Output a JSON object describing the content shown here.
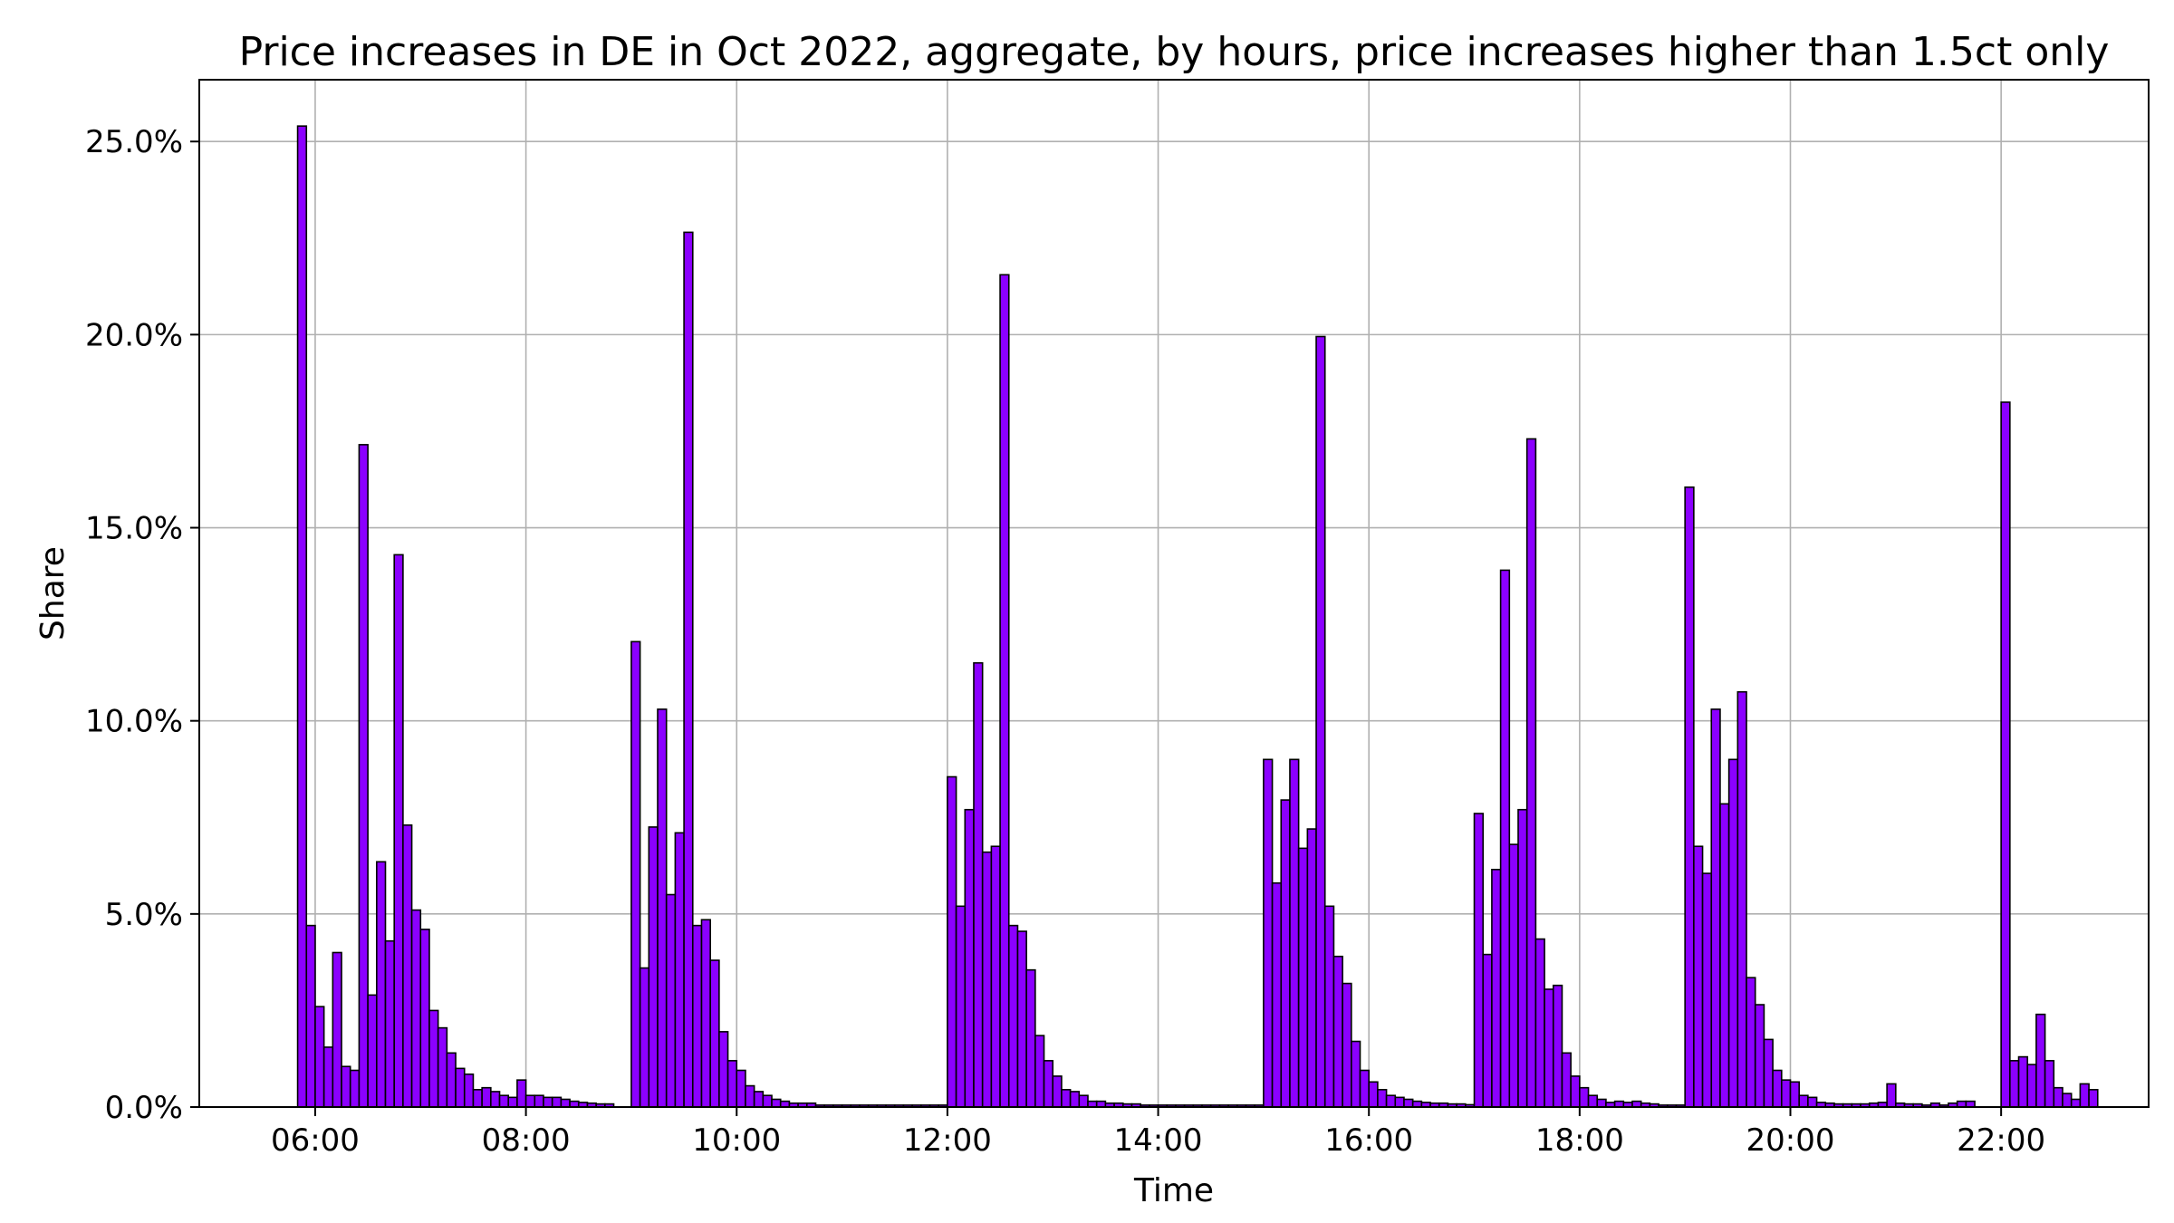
{
  "chart_data": {
    "type": "bar",
    "title": "Price increases in DE in Oct 2022, aggregate, by hours, price increases higher than 1.5ct only",
    "xlabel": "Time",
    "ylabel": "Share",
    "x_tick_labels": [
      "06:00",
      "08:00",
      "10:00",
      "12:00",
      "14:00",
      "16:00",
      "18:00",
      "20:00",
      "22:00"
    ],
    "y_tick_labels": [
      "0.0%",
      "5.0%",
      "10.0%",
      "15.0%",
      "20.0%",
      "25.0%"
    ],
    "y_ticks": [
      0,
      5,
      10,
      15,
      20,
      25
    ],
    "x_ticks_hours": [
      6,
      8,
      10,
      12,
      14,
      16,
      18,
      20,
      22
    ],
    "xlim_hours": [
      4.9,
      23.4
    ],
    "ylim": [
      0,
      26.6
    ],
    "bin_width_minutes": 5,
    "grid": true,
    "bar_color": "#8b00ff",
    "edge_color": "#000000",
    "series": [
      {
        "start_time": "05:50",
        "values": [
          25.4,
          4.7,
          2.6,
          1.55,
          4.0,
          1.05,
          0.95,
          17.15,
          2.9,
          6.35,
          4.3,
          14.3,
          7.3,
          5.1,
          4.6,
          2.5,
          2.05,
          1.4,
          1.0,
          0.85,
          0.45,
          0.5,
          0.4,
          0.3,
          0.25,
          0.7,
          0.3,
          0.3,
          0.25,
          0.25,
          0.2,
          0.15,
          0.12,
          0.1,
          0.08,
          0.08
        ]
      },
      {
        "start_time": "09:00",
        "values": [
          12.05,
          3.6,
          7.25,
          10.3,
          5.5,
          7.1,
          22.65,
          4.7,
          4.85,
          3.8,
          1.95,
          1.2,
          0.95,
          0.55,
          0.4,
          0.3,
          0.2,
          0.15,
          0.1,
          0.1,
          0.1,
          0.05,
          0.05,
          0.05,
          0.05,
          0.05,
          0.05,
          0.05,
          0.05,
          0.05,
          0.05,
          0.05,
          0.05,
          0.05,
          0.05,
          0.05
        ]
      },
      {
        "start_time": "12:00",
        "values": [
          8.55,
          5.2,
          7.7,
          11.5,
          6.6,
          6.75,
          21.55,
          4.7,
          4.55,
          3.55,
          1.85,
          1.2,
          0.8,
          0.45,
          0.4,
          0.3,
          0.15,
          0.15,
          0.1,
          0.1,
          0.08,
          0.08,
          0.05,
          0.05,
          0.05,
          0.05,
          0.05,
          0.05,
          0.05,
          0.05,
          0.05,
          0.05,
          0.05,
          0.05,
          0.05,
          0.05
        ]
      },
      {
        "start_time": "15:00",
        "values": [
          9.0,
          5.8,
          7.95,
          9.0,
          6.7,
          7.2,
          19.95,
          5.2,
          3.9,
          3.2,
          1.7,
          0.95,
          0.65,
          0.45,
          0.3,
          0.25,
          0.2,
          0.15,
          0.12,
          0.1,
          0.1,
          0.08,
          0.08,
          0.06
        ]
      },
      {
        "start_time": "17:00",
        "values": [
          7.6,
          3.95,
          6.15,
          13.9,
          6.8,
          7.7,
          17.3,
          4.35,
          3.05,
          3.15,
          1.4,
          0.8,
          0.5,
          0.3,
          0.2,
          0.12,
          0.15,
          0.12,
          0.15,
          0.1,
          0.08,
          0.05,
          0.05,
          0.05
        ]
      },
      {
        "start_time": "19:00",
        "values": [
          16.05,
          6.75,
          6.05,
          10.3,
          7.85,
          9.0,
          10.75,
          3.35,
          2.65,
          1.75,
          0.95,
          0.7,
          0.65,
          0.3,
          0.25,
          0.12,
          0.1,
          0.08,
          0.08,
          0.08,
          0.08,
          0.1,
          0.12,
          0.6,
          0.1,
          0.08,
          0.08,
          0.05,
          0.1,
          0.05,
          0.1,
          0.15,
          0.15
        ]
      },
      {
        "start_time": "22:00",
        "values": [
          18.25,
          1.2,
          1.3,
          1.1,
          2.4,
          1.2,
          0.5,
          0.35,
          0.2,
          0.6,
          0.45
        ]
      }
    ]
  }
}
